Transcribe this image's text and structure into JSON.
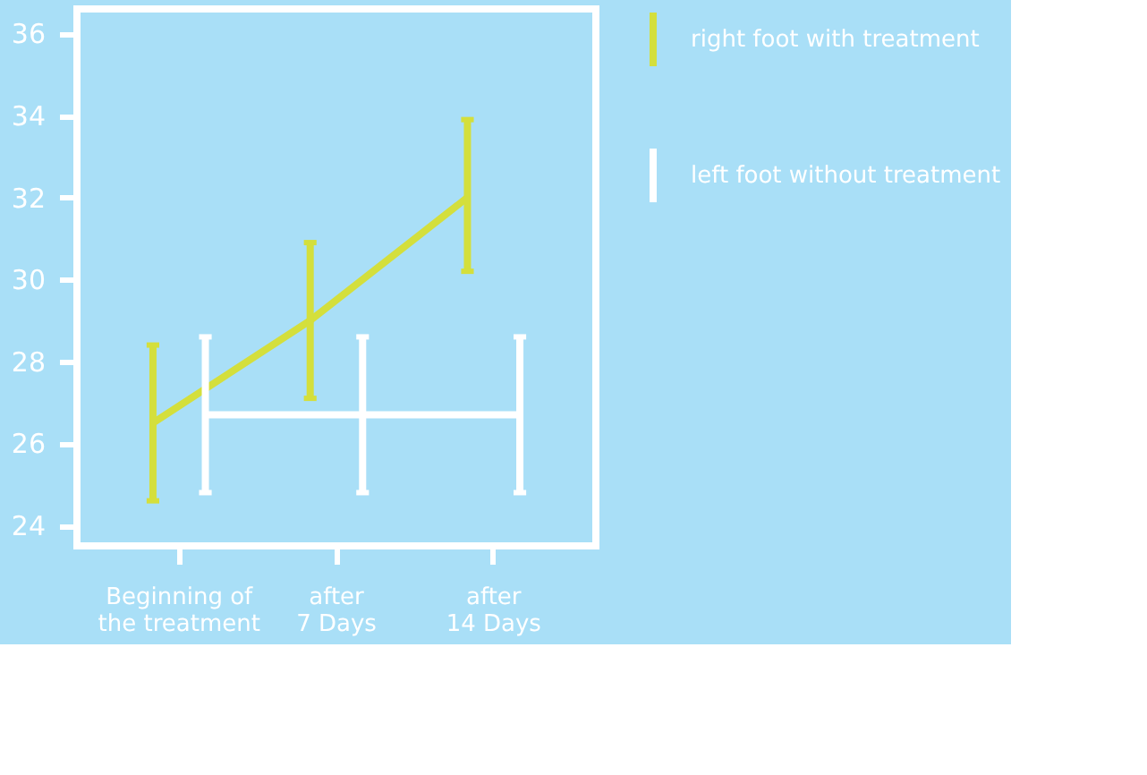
{
  "chart_data": {
    "type": "line",
    "categories": [
      "Beginning of\nthe treatment",
      "after\n7 Days",
      "after\n14 Days"
    ],
    "series": [
      {
        "name": "right foot with treatment",
        "color": "#d4df3c",
        "values": [
          26.5,
          29,
          32
        ],
        "errors": [
          [
            24.6,
            28.4
          ],
          [
            27.1,
            30.9
          ],
          [
            30.2,
            33.9
          ]
        ]
      },
      {
        "name": "left foot without treatment",
        "color": "#ffffff",
        "values": [
          26.7,
          26.7,
          26.7
        ],
        "errors": [
          [
            24.8,
            28.6
          ],
          [
            24.8,
            28.6
          ],
          [
            24.8,
            28.6
          ]
        ]
      }
    ],
    "ylim": [
      23.5,
      36.6
    ],
    "yticks": [
      24,
      26,
      28,
      30,
      32,
      34,
      36
    ],
    "grid": false,
    "legend": "right",
    "marker": "none",
    "line_style": "solid"
  }
}
